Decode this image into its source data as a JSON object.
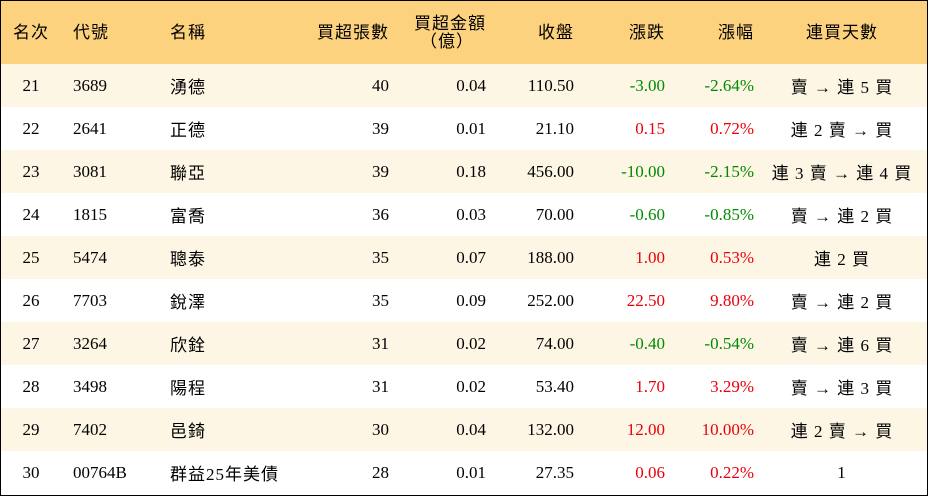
{
  "headers": {
    "rank": "名次",
    "code": "代號",
    "name": "名稱",
    "net_buy_qty": "買超張數",
    "net_buy_amount_line1": "買超金額",
    "net_buy_amount_line2": "（億）",
    "close": "收盤",
    "change": "漲跌",
    "change_pct": "漲幅",
    "streak": "連買天數"
  },
  "colors": {
    "header_bg": "#fcd27e",
    "odd_row_bg": "#fdf6e4",
    "even_row_bg": "#ffffff",
    "up": "#e8000b",
    "down": "#008a00"
  },
  "rows": [
    {
      "rank": "21",
      "code": "3689",
      "name": "湧德",
      "qty": "40",
      "amount": "0.04",
      "close": "110.50",
      "change": "-3.00",
      "pct": "-2.64%",
      "dir": "down",
      "streak": "賣 → 連 5 買"
    },
    {
      "rank": "22",
      "code": "2641",
      "name": "正德",
      "qty": "39",
      "amount": "0.01",
      "close": "21.10",
      "change": "0.15",
      "pct": "0.72%",
      "dir": "up",
      "streak": "連 2 賣 → 買"
    },
    {
      "rank": "23",
      "code": "3081",
      "name": "聯亞",
      "qty": "39",
      "amount": "0.18",
      "close": "456.00",
      "change": "-10.00",
      "pct": "-2.15%",
      "dir": "down",
      "streak": "連 3 賣 → 連 4 買"
    },
    {
      "rank": "24",
      "code": "1815",
      "name": "富喬",
      "qty": "36",
      "amount": "0.03",
      "close": "70.00",
      "change": "-0.60",
      "pct": "-0.85%",
      "dir": "down",
      "streak": "賣 → 連 2 買"
    },
    {
      "rank": "25",
      "code": "5474",
      "name": "聰泰",
      "qty": "35",
      "amount": "0.07",
      "close": "188.00",
      "change": "1.00",
      "pct": "0.53%",
      "dir": "up",
      "streak": "連 2 買"
    },
    {
      "rank": "26",
      "code": "7703",
      "name": "銳澤",
      "qty": "35",
      "amount": "0.09",
      "close": "252.00",
      "change": "22.50",
      "pct": "9.80%",
      "dir": "up",
      "streak": "賣 → 連 2 買"
    },
    {
      "rank": "27",
      "code": "3264",
      "name": "欣銓",
      "qty": "31",
      "amount": "0.02",
      "close": "74.00",
      "change": "-0.40",
      "pct": "-0.54%",
      "dir": "down",
      "streak": "賣 → 連 6 買"
    },
    {
      "rank": "28",
      "code": "3498",
      "name": "陽程",
      "qty": "31",
      "amount": "0.02",
      "close": "53.40",
      "change": "1.70",
      "pct": "3.29%",
      "dir": "up",
      "streak": "賣 → 連 3 買"
    },
    {
      "rank": "29",
      "code": "7402",
      "name": "邑錡",
      "qty": "30",
      "amount": "0.04",
      "close": "132.00",
      "change": "12.00",
      "pct": "10.00%",
      "dir": "up",
      "streak": "連 2 賣 → 買"
    },
    {
      "rank": "30",
      "code": "00764B",
      "name": "群益25年美債",
      "qty": "28",
      "amount": "0.01",
      "close": "27.35",
      "change": "0.06",
      "pct": "0.22%",
      "dir": "up",
      "streak": "1"
    }
  ]
}
